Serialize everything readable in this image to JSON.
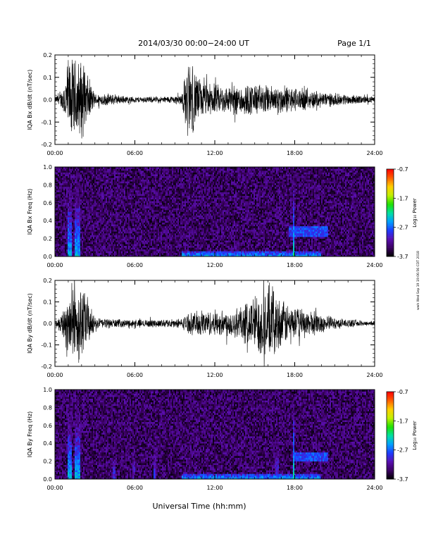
{
  "header": {
    "title": "2014/03/30  00:00−24:00 UT",
    "page": "Page 1/1"
  },
  "footer": {
    "xlabel": "Universal Time (hh:mm)",
    "stamp": "wwh Wed Sep 19 19:06:56 CDT 2018"
  },
  "colorbar": {
    "label": "Log₁₀ Power",
    "ticks": [
      "-0.7",
      "-1.7",
      "-2.7",
      "-3.7"
    ],
    "values": [
      -0.7,
      -1.7,
      -2.7,
      -3.7
    ],
    "range": [
      -3.7,
      -0.7
    ],
    "colormap": [
      "#000000",
      "#3a0060",
      "#5a0fb0",
      "#1d3cff",
      "#00a0ff",
      "#00e0a0",
      "#20e000",
      "#c0f000",
      "#ffd000",
      "#ff6000",
      "#ff0000"
    ]
  },
  "chart_data": [
    {
      "type": "line",
      "ylabel": "IQA Bx dB/dt (nT/sec)",
      "xlim": [
        0,
        24
      ],
      "ylim": [
        -0.2,
        0.2
      ],
      "xticks": [
        "00:00",
        "06:00",
        "12:00",
        "18:00",
        "24:00"
      ],
      "yticks": [
        "0.2",
        "0.1",
        "0.0",
        "-0.1",
        "-0.2"
      ],
      "x": [
        0,
        0.5,
        1,
        1.5,
        2,
        3,
        4,
        5,
        6,
        7,
        8,
        9,
        9.5,
        10,
        10.5,
        11,
        12,
        13,
        14,
        15,
        16,
        17,
        18,
        19,
        20,
        21,
        22,
        23,
        24
      ],
      "amplitude": [
        0.015,
        0.04,
        0.2,
        0.2,
        0.2,
        0.03,
        0.03,
        0.02,
        0.015,
        0.015,
        0.015,
        0.02,
        0.03,
        0.2,
        0.15,
        0.09,
        0.075,
        0.07,
        0.08,
        0.08,
        0.07,
        0.07,
        0.06,
        0.05,
        0.04,
        0.03,
        0.025,
        0.02,
        0.015
      ]
    },
    {
      "type": "heatmap",
      "ylabel": "IQA Bx Freq (Hz)",
      "xlim": [
        0,
        24
      ],
      "ylim": [
        0,
        1.0
      ],
      "xticks": [
        "00:00",
        "06:00",
        "12:00",
        "18:00",
        "24:00"
      ],
      "yticks": [
        "1.0",
        "0.8",
        "0.6",
        "0.4",
        "0.2",
        "0.0"
      ],
      "features": [
        {
          "kind": "burst",
          "t": [
            0.9,
            1.3
          ],
          "f_max": 1.0,
          "level": -2.4
        },
        {
          "kind": "burst",
          "t": [
            1.5,
            1.9
          ],
          "f_max": 1.0,
          "level": -2.4
        },
        {
          "kind": "lowband",
          "t": [
            9.5,
            20
          ],
          "f_max": 0.06,
          "level": -2.5
        },
        {
          "kind": "line",
          "t": [
            17.9,
            18.0
          ],
          "f_max": 1.0,
          "level": -2.2
        },
        {
          "kind": "band",
          "t": [
            17.5,
            20.5
          ],
          "f": [
            0.22,
            0.34
          ],
          "level": -2.8
        }
      ]
    },
    {
      "type": "line",
      "ylabel": "IQA By dB/dt (nT/sec)",
      "xlim": [
        0,
        24
      ],
      "ylim": [
        -0.2,
        0.2
      ],
      "xticks": [
        "00:00",
        "06:00",
        "12:00",
        "18:00",
        "24:00"
      ],
      "yticks": [
        "0.2",
        "0.1",
        "0.0",
        "-0.1",
        "-0.2"
      ],
      "x": [
        0,
        0.5,
        1,
        1.5,
        2,
        3,
        4,
        5,
        6,
        7,
        8,
        9,
        9.5,
        10,
        10.5,
        11,
        12,
        13,
        14,
        15,
        16,
        17,
        18,
        19,
        20,
        21,
        22,
        23,
        24
      ],
      "amplitude": [
        0.015,
        0.05,
        0.2,
        0.2,
        0.2,
        0.03,
        0.025,
        0.02,
        0.02,
        0.02,
        0.02,
        0.02,
        0.025,
        0.05,
        0.06,
        0.07,
        0.06,
        0.07,
        0.09,
        0.15,
        0.2,
        0.12,
        0.08,
        0.07,
        0.05,
        0.03,
        0.02,
        0.015,
        0.012
      ]
    },
    {
      "type": "heatmap",
      "ylabel": "IQA By Freq (Hz)",
      "xlim": [
        0,
        24
      ],
      "ylim": [
        0,
        1.0
      ],
      "xticks": [
        "00:00",
        "06:00",
        "12:00",
        "18:00",
        "24:00"
      ],
      "yticks": [
        "1.0",
        "0.8",
        "0.6",
        "0.4",
        "0.2",
        "0.0"
      ],
      "features": [
        {
          "kind": "burst",
          "t": [
            0.9,
            1.3
          ],
          "f_max": 1.0,
          "level": -2.4
        },
        {
          "kind": "burst",
          "t": [
            1.5,
            1.9
          ],
          "f_max": 1.0,
          "level": -2.4
        },
        {
          "kind": "line",
          "t": [
            4.3,
            4.5
          ],
          "f_max": 0.2,
          "level": -2.9
        },
        {
          "kind": "line",
          "t": [
            5.8,
            6.0
          ],
          "f_max": 0.6,
          "level": -3.0
        },
        {
          "kind": "line",
          "t": [
            7.4,
            7.6
          ],
          "f_max": 0.8,
          "level": -2.9
        },
        {
          "kind": "lowband",
          "t": [
            9.5,
            20
          ],
          "f_max": 0.06,
          "level": -2.5
        },
        {
          "kind": "line",
          "t": [
            16.5,
            16.8
          ],
          "f_max": 0.9,
          "level": -2.9
        },
        {
          "kind": "line",
          "t": [
            17.9,
            18.0
          ],
          "f_max": 1.0,
          "level": -2.2
        },
        {
          "kind": "band",
          "t": [
            18.0,
            20.5
          ],
          "f": [
            0.2,
            0.3
          ],
          "level": -2.8
        }
      ]
    }
  ]
}
